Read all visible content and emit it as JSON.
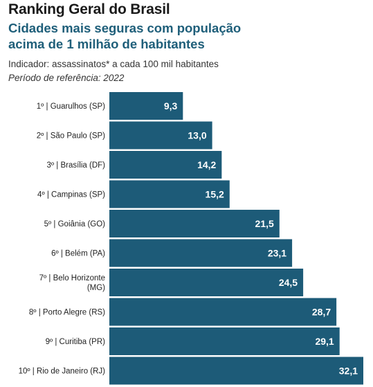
{
  "header": {
    "title": "Ranking Geral do Brasil",
    "subtitle": "Cidades mais seguras com população acima de 1 milhão de habitantes",
    "indicator": "Indicador: assassinatos* a cada 100 mil habitantes",
    "period": "Período de referência: 2022"
  },
  "chart_data": {
    "type": "bar",
    "orientation": "horizontal",
    "title": "Ranking Geral do Brasil",
    "subtitle": "Cidades mais seguras com população acima de 1 milhão de habitantes",
    "categories": [
      [
        "1º | Guarulhos (SP)"
      ],
      [
        "2º | São Paulo (SP)"
      ],
      [
        "3º | Brasília (DF)"
      ],
      [
        "4º | Campinas (SP)"
      ],
      [
        "5º | Goiânia (GO)"
      ],
      [
        "6º | Belém (PA)"
      ],
      [
        "7º | Belo Horizonte",
        "(MG)"
      ],
      [
        "8º | Porto Alegre (RS)"
      ],
      [
        "9º | Curitiba (PR)"
      ],
      [
        "10º | Rio de Janeiro (RJ)"
      ]
    ],
    "values": [
      9.3,
      13.0,
      14.2,
      15.2,
      21.5,
      23.1,
      24.5,
      28.7,
      29.1,
      32.1
    ],
    "value_labels": [
      "9,3",
      "13,0",
      "14,2",
      "15,2",
      "21,5",
      "23,1",
      "24,5",
      "28,7",
      "29,1",
      "32,1"
    ],
    "bar_color": "#1d5b78",
    "label_color": "#ffffff",
    "grid": false,
    "legend": "none"
  }
}
